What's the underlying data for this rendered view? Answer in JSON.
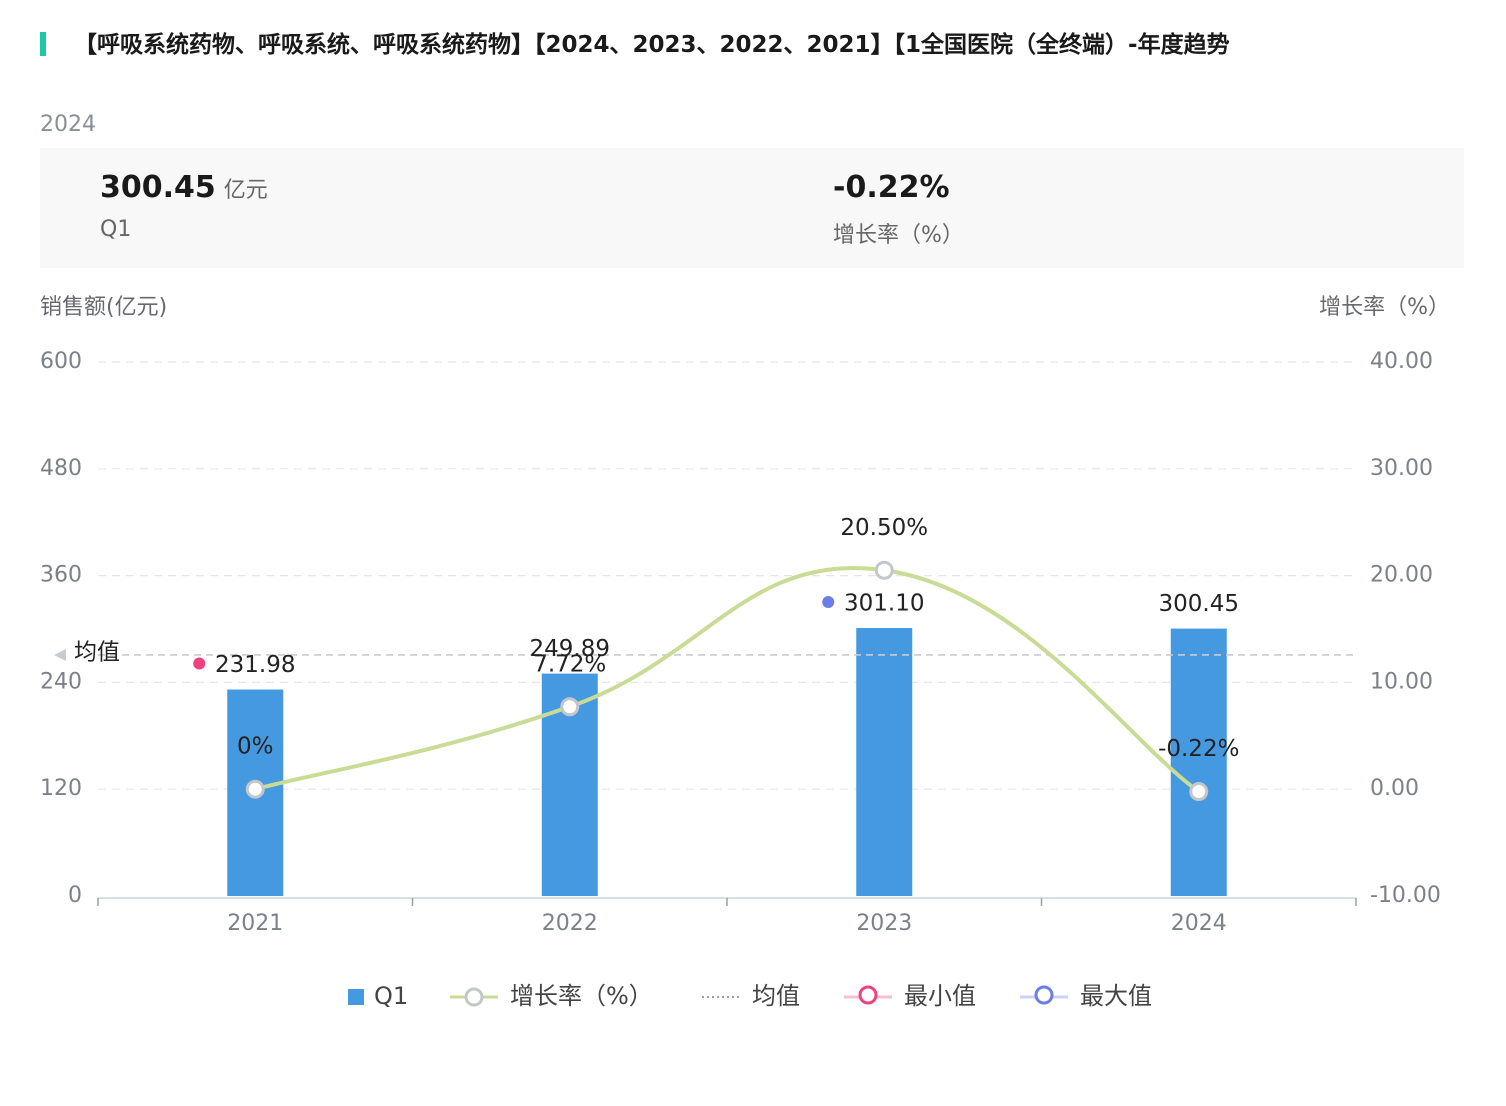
{
  "header": {
    "title": "【呼吸系统药物、呼吸系统、呼吸系统药物】【2024、2023、2022、2021】【1全国医院（全终端）-年度趋势",
    "accent_color": "#1ec8a5"
  },
  "summary": {
    "year": "2024",
    "sales_value": "300.45",
    "sales_unit": "亿元",
    "sales_label": "Q1",
    "growth_value": "-0.22%",
    "growth_label": "增长率（%）"
  },
  "chart_data": {
    "type": "bar",
    "categories": [
      "2021",
      "2022",
      "2023",
      "2024"
    ],
    "series": [
      {
        "name": "Q1",
        "type": "bar",
        "axis": "left",
        "color": "#4499e0",
        "values": [
          231.98,
          249.89,
          301.1,
          300.45
        ],
        "labels": [
          "231.98",
          "249.89",
          "301.10",
          "300.45"
        ]
      },
      {
        "name": "增长率（%）",
        "type": "line",
        "axis": "right",
        "color": "#c9db94",
        "values": [
          0,
          7.72,
          20.5,
          -0.22
        ],
        "labels": [
          "0%",
          "7.72%",
          "20.50%",
          "-0.22%"
        ]
      }
    ],
    "y_left": {
      "title": "销售额(亿元)",
      "ticks": [
        "0",
        "120",
        "240",
        "360",
        "480",
        "600"
      ],
      "min": 0,
      "max": 600
    },
    "y_right": {
      "title": "增长率（%）",
      "ticks": [
        "-10.00",
        "0.00",
        "10.00",
        "20.00",
        "30.00",
        "40.00"
      ],
      "min": -10,
      "max": 40
    },
    "average": {
      "label": "均值",
      "value": 270.855,
      "color": "#c8ccd2"
    },
    "min_marker": {
      "category": "2021",
      "color": "#f0417f",
      "legend": "最小值"
    },
    "max_marker": {
      "category": "2023",
      "color": "#6d7de8",
      "legend": "最大值"
    },
    "legend": [
      {
        "name": "Q1",
        "kind": "bar",
        "color": "#4499e0"
      },
      {
        "name": "增长率（%）",
        "kind": "line-circle",
        "color": "#c9db94"
      },
      {
        "name": "均值",
        "kind": "dotted",
        "color": "#9aa0a8"
      },
      {
        "name": "最小值",
        "kind": "circle-line",
        "color": "#f0417f"
      },
      {
        "name": "最大值",
        "kind": "circle-line",
        "color": "#6d7de8"
      }
    ],
    "legend_position": "bottom-center",
    "grid": true
  }
}
